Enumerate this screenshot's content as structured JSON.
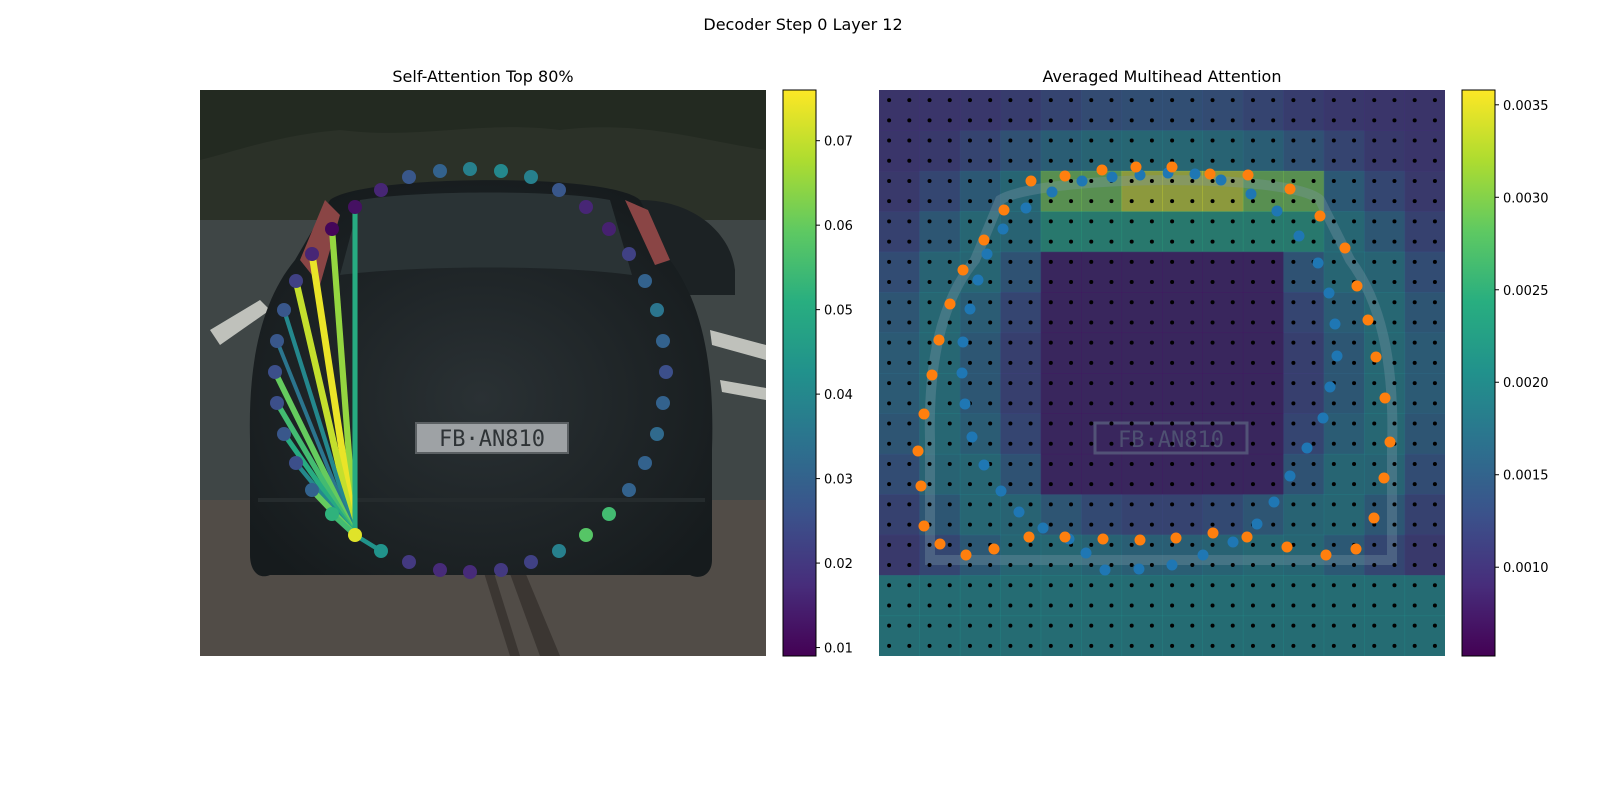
{
  "figure": {
    "title": "Decoder Step 0 Layer 12"
  },
  "chart_data": [
    {
      "type": "scatter",
      "title": "Self-Attention Top 80%",
      "xlabel": "",
      "ylabel": "",
      "background": "photo of a dark hatchback car from the rear",
      "colormap": "viridis",
      "query_point": [
        355,
        535
      ],
      "points": [
        [
          355,
          535,
          0.073
        ],
        [
          381,
          551,
          0.043
        ],
        [
          409,
          562,
          0.02
        ],
        [
          440,
          570,
          0.017
        ],
        [
          470,
          572,
          0.017
        ],
        [
          501,
          570,
          0.02
        ],
        [
          531,
          562,
          0.022
        ],
        [
          559,
          551,
          0.038
        ],
        [
          586,
          535,
          0.058
        ],
        [
          609,
          514,
          0.055
        ],
        [
          629,
          490,
          0.03
        ],
        [
          645,
          463,
          0.03
        ],
        [
          657,
          434,
          0.032
        ],
        [
          663,
          403,
          0.03
        ],
        [
          666,
          372,
          0.025
        ],
        [
          663,
          341,
          0.03
        ],
        [
          657,
          310,
          0.035
        ],
        [
          645,
          281,
          0.03
        ],
        [
          629,
          254,
          0.022
        ],
        [
          609,
          229,
          0.015
        ],
        [
          586,
          207,
          0.016
        ],
        [
          559,
          190,
          0.027
        ],
        [
          531,
          177,
          0.038
        ],
        [
          501,
          171,
          0.04
        ],
        [
          470,
          169,
          0.038
        ],
        [
          440,
          171,
          0.03
        ],
        [
          409,
          177,
          0.027
        ],
        [
          381,
          190,
          0.016
        ],
        [
          355,
          207,
          0.012
        ],
        [
          332,
          229,
          0.01
        ],
        [
          312,
          254,
          0.016
        ],
        [
          296,
          281,
          0.022
        ],
        [
          284,
          310,
          0.027
        ],
        [
          277,
          341,
          0.027
        ],
        [
          275,
          372,
          0.025
        ],
        [
          277,
          403,
          0.025
        ],
        [
          284,
          434,
          0.027
        ],
        [
          296,
          463,
          0.025
        ],
        [
          312,
          490,
          0.03
        ],
        [
          332,
          514,
          0.052
        ]
      ],
      "links": [
        [
          332,
          229,
          0.065
        ],
        [
          312,
          254,
          0.074
        ],
        [
          296,
          281,
          0.07
        ],
        [
          284,
          310,
          0.04
        ],
        [
          277,
          341,
          0.035
        ],
        [
          275,
          372,
          0.06
        ],
        [
          277,
          403,
          0.055
        ],
        [
          284,
          434,
          0.05
        ],
        [
          296,
          463,
          0.04
        ],
        [
          312,
          490,
          0.06
        ],
        [
          332,
          514,
          0.055
        ],
        [
          355,
          207,
          0.05
        ],
        [
          381,
          551,
          0.043
        ]
      ],
      "colorbar": {
        "ticks": [
          "0.01",
          "0.02",
          "0.03",
          "0.04",
          "0.05",
          "0.06",
          "0.07"
        ],
        "range": [
          0.009,
          0.076
        ]
      }
    },
    {
      "type": "heatmap",
      "title": "Averaged Multihead Attention",
      "xlabel": "",
      "ylabel": "",
      "background": "same car photo overlaid with a coarse attention heatmap",
      "colormap": "viridis",
      "grid_points": "black dots on a regular 28x28 grid",
      "series": [
        {
          "color": "#1f77b4",
          "points": [
            [
              1105,
              570
            ],
            [
              1139,
              569
            ],
            [
              1172,
              565
            ],
            [
              1203,
              555
            ],
            [
              1233,
              542
            ],
            [
              1257,
              524
            ],
            [
              1274,
              502
            ],
            [
              1290,
              476
            ],
            [
              1307,
              448
            ],
            [
              1323,
              418
            ],
            [
              1330,
              387
            ],
            [
              1337,
              356
            ],
            [
              1335,
              324
            ],
            [
              1329,
              293
            ],
            [
              1318,
              263
            ],
            [
              1299,
              236
            ],
            [
              1277,
              211
            ],
            [
              1251,
              194
            ],
            [
              1221,
              180
            ],
            [
              1195,
              174
            ],
            [
              1168,
              173
            ],
            [
              1140,
              175
            ],
            [
              1112,
              177
            ],
            [
              1082,
              181
            ],
            [
              1052,
              192
            ],
            [
              1026,
              208
            ],
            [
              1003,
              229
            ],
            [
              987,
              254
            ],
            [
              978,
              280
            ],
            [
              970,
              309
            ],
            [
              963,
              342
            ],
            [
              962,
              373
            ],
            [
              965,
              404
            ],
            [
              972,
              437
            ],
            [
              984,
              465
            ],
            [
              1001,
              491
            ],
            [
              1019,
              512
            ],
            [
              1043,
              528
            ],
            [
              1069,
              539
            ],
            [
              1086,
              553
            ]
          ]
        },
        {
          "color": "#ff7f0e",
          "points": [
            [
              1102,
              170
            ],
            [
              1136,
              167
            ],
            [
              1172,
              167
            ],
            [
              1210,
              174
            ],
            [
              1248,
              175
            ],
            [
              1290,
              189
            ],
            [
              1320,
              216
            ],
            [
              1345,
              248
            ],
            [
              1357,
              286
            ],
            [
              1368,
              320
            ],
            [
              1376,
              357
            ],
            [
              1385,
              398
            ],
            [
              1390,
              442
            ],
            [
              1384,
              478
            ],
            [
              1374,
              518
            ],
            [
              1356,
              549
            ],
            [
              1326,
              555
            ],
            [
              1287,
              547
            ],
            [
              1247,
              537
            ],
            [
              1213,
              533
            ],
            [
              1176,
              538
            ],
            [
              1140,
              540
            ],
            [
              1103,
              539
            ],
            [
              1065,
              537
            ],
            [
              1029,
              537
            ],
            [
              994,
              549
            ],
            [
              966,
              555
            ],
            [
              940,
              544
            ],
            [
              924,
              526
            ],
            [
              921,
              486
            ],
            [
              918,
              451
            ],
            [
              924,
              414
            ],
            [
              932,
              375
            ],
            [
              939,
              340
            ],
            [
              950,
              304
            ],
            [
              963,
              270
            ],
            [
              984,
              240
            ],
            [
              1004,
              210
            ],
            [
              1031,
              181
            ],
            [
              1065,
              176
            ]
          ]
        }
      ],
      "colorbar": {
        "ticks": [
          "0.0010",
          "0.0015",
          "0.0020",
          "0.0025",
          "0.0030",
          "0.0035"
        ],
        "range": [
          0.00052,
          0.00358
        ]
      }
    }
  ]
}
